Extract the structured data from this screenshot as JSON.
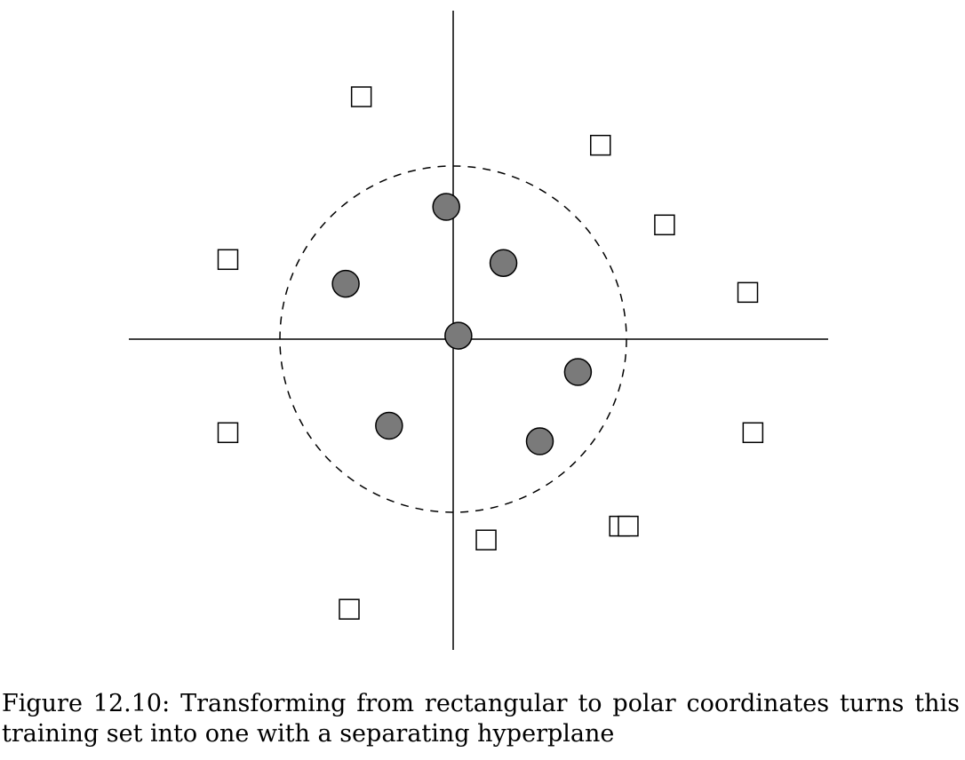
{
  "figure": {
    "caption": "Figure 12.10: Transforming from rectangular to polar coordinates turns this training set into one with a separating hyperplane",
    "boundary": "dashed circle",
    "classes": {
      "circles": {
        "fill": "#7a7a7a",
        "stroke": "#000000"
      },
      "squares": {
        "fill": "#ffffff",
        "stroke": "#000000"
      }
    }
  },
  "chart_data": {
    "type": "scatter",
    "axes": {
      "x_ticks": "none",
      "y_ticks": "none",
      "grid": false,
      "legend": "none"
    },
    "xlim": [
      -10,
      10
    ],
    "ylim": [
      -10,
      10
    ],
    "circle_radius": 5,
    "series": [
      {
        "marker": "circle",
        "points": [
          [
            -0.2,
            3.82
          ],
          [
            1.45,
            2.2
          ],
          [
            -3.1,
            1.6
          ],
          [
            0.15,
            0.1
          ],
          [
            3.6,
            -0.95
          ],
          [
            -1.85,
            -2.5
          ],
          [
            2.5,
            -2.95
          ]
        ]
      },
      {
        "marker": "square",
        "points": [
          [
            -2.65,
            7.0
          ],
          [
            4.25,
            5.6
          ],
          [
            6.1,
            3.3
          ],
          [
            -6.5,
            2.3
          ],
          [
            8.5,
            1.35
          ],
          [
            -6.5,
            -2.7
          ],
          [
            8.65,
            -2.7
          ],
          [
            0.95,
            -5.8
          ],
          [
            4.8,
            -5.4
          ],
          [
            5.05,
            -5.4
          ],
          [
            -3.0,
            -7.8
          ]
        ]
      }
    ]
  }
}
